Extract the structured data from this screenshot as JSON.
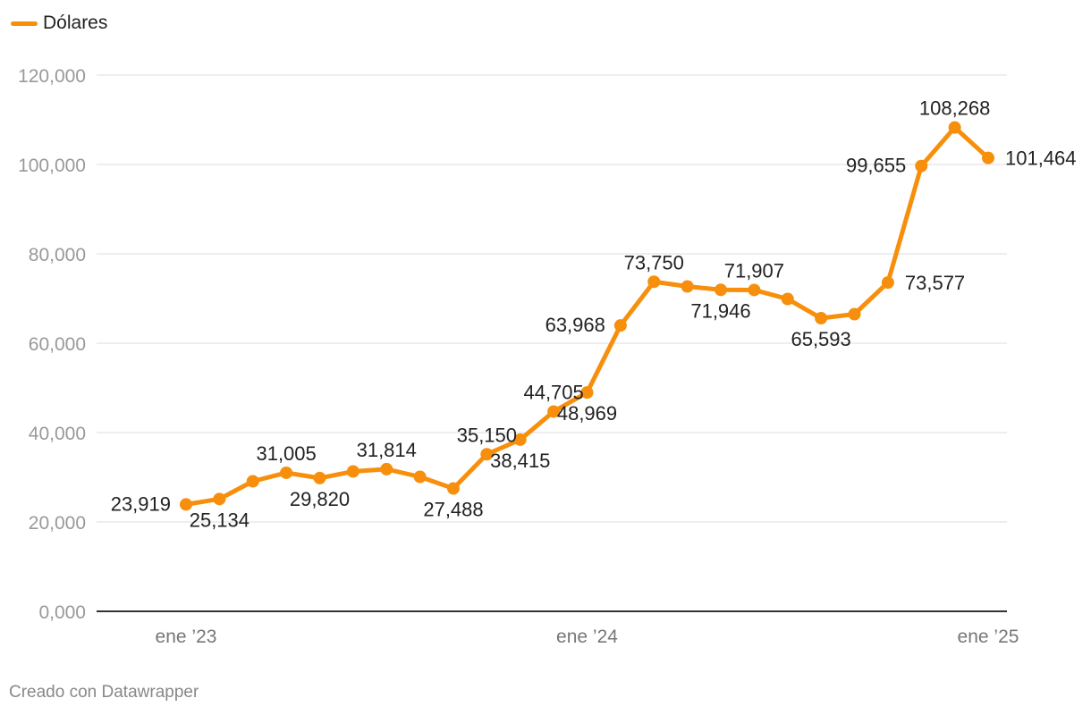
{
  "legend": {
    "label": "Dólares",
    "color": "#f78f0c"
  },
  "footer": {
    "credit": "Creado con Datawrapper"
  },
  "chart_data": {
    "type": "line",
    "title": "",
    "xlabel": "",
    "ylabel": "",
    "ylim": [
      0,
      120000
    ],
    "y_ticks": [
      0,
      20000,
      40000,
      60000,
      80000,
      100000,
      120000
    ],
    "y_tick_labels": [
      "0,000",
      "20,000",
      "40,000",
      "60,000",
      "80,000",
      "100,000",
      "120,000"
    ],
    "x_ticks": [
      {
        "label": "ene ’23",
        "index": 0
      },
      {
        "label": "ene ’24",
        "index": 12
      },
      {
        "label": "ene ’25",
        "index": 24
      }
    ],
    "grid": true,
    "legend_position": "top-left",
    "colors": {
      "line": "#f78f0c",
      "grid": "#dddddd",
      "axis": "#333333",
      "tick_text": "#999999",
      "label_text": "#222222"
    },
    "x": [
      "2023-01",
      "2023-02",
      "2023-03",
      "2023-04",
      "2023-05",
      "2023-06",
      "2023-07",
      "2023-08",
      "2023-09",
      "2023-10",
      "2023-11",
      "2023-12",
      "2024-01",
      "2024-02",
      "2024-03",
      "2024-04",
      "2024-05",
      "2024-06",
      "2024-07",
      "2024-08",
      "2024-09",
      "2024-10",
      "2024-11",
      "2024-12",
      "2025-01"
    ],
    "series": [
      {
        "name": "Dólares",
        "values": [
          23919,
          25134,
          29100,
          31005,
          29820,
          31300,
          31814,
          30100,
          27488,
          35150,
          38415,
          44705,
          48969,
          63968,
          73750,
          72700,
          71946,
          71907,
          69900,
          65593,
          66500,
          73577,
          99655,
          108268,
          101464
        ]
      }
    ],
    "data_labels": [
      {
        "text": "23,919",
        "index": 0,
        "pos": "left"
      },
      {
        "text": "25,134",
        "index": 1,
        "pos": "below"
      },
      {
        "text": "31,005",
        "index": 3,
        "pos": "above"
      },
      {
        "text": "29,820",
        "index": 4,
        "pos": "below"
      },
      {
        "text": "31,814",
        "index": 6,
        "pos": "above"
      },
      {
        "text": "27,488",
        "index": 8,
        "pos": "below"
      },
      {
        "text": "35,150",
        "index": 9,
        "pos": "above"
      },
      {
        "text": "38,415",
        "index": 10,
        "pos": "below"
      },
      {
        "text": "44,705",
        "index": 11,
        "pos": "above"
      },
      {
        "text": "48,969",
        "index": 12,
        "pos": "below"
      },
      {
        "text": "63,968",
        "index": 13,
        "pos": "left"
      },
      {
        "text": "73,750",
        "index": 14,
        "pos": "above"
      },
      {
        "text": "71,946",
        "index": 16,
        "pos": "below"
      },
      {
        "text": "71,907",
        "index": 17,
        "pos": "above"
      },
      {
        "text": "65,593",
        "index": 19,
        "pos": "below"
      },
      {
        "text": "73,577",
        "index": 21,
        "pos": "right"
      },
      {
        "text": "99,655",
        "index": 22,
        "pos": "left"
      },
      {
        "text": "108,268",
        "index": 23,
        "pos": "above"
      },
      {
        "text": "101,464",
        "index": 24,
        "pos": "right"
      }
    ]
  }
}
